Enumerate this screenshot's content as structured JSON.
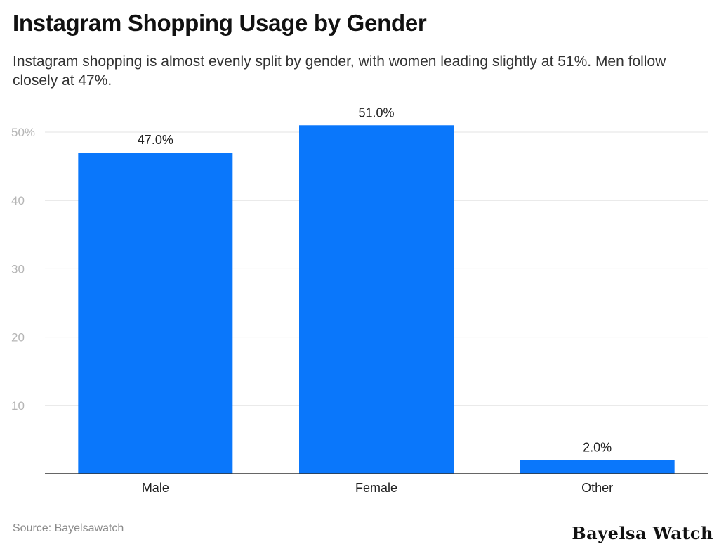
{
  "title": "Instagram Shopping Usage by Gender",
  "subtitle": "Instagram shopping is almost evenly split by gender, with women leading slightly at 51%. Men follow closely at 47%.",
  "source": "Source: Bayelsawatch",
  "brand": "Bayelsa Watch",
  "colors": {
    "bar": "#0a77fb",
    "grid": "#e3e3e3",
    "axis": "#333333",
    "tick_label": "#b5b5b5"
  },
  "chart_data": {
    "type": "bar",
    "categories": [
      "Male",
      "Female",
      "Other"
    ],
    "values": [
      47,
      51,
      2
    ],
    "value_labels": [
      "47.0%",
      "51.0%",
      "2.0%"
    ],
    "ylim": [
      0,
      50
    ],
    "yticks": [
      10,
      20,
      30,
      40,
      50
    ],
    "ytick_labels": [
      "10",
      "20",
      "30",
      "40",
      "50%"
    ],
    "xlabel": "",
    "ylabel": "",
    "grid": true
  }
}
